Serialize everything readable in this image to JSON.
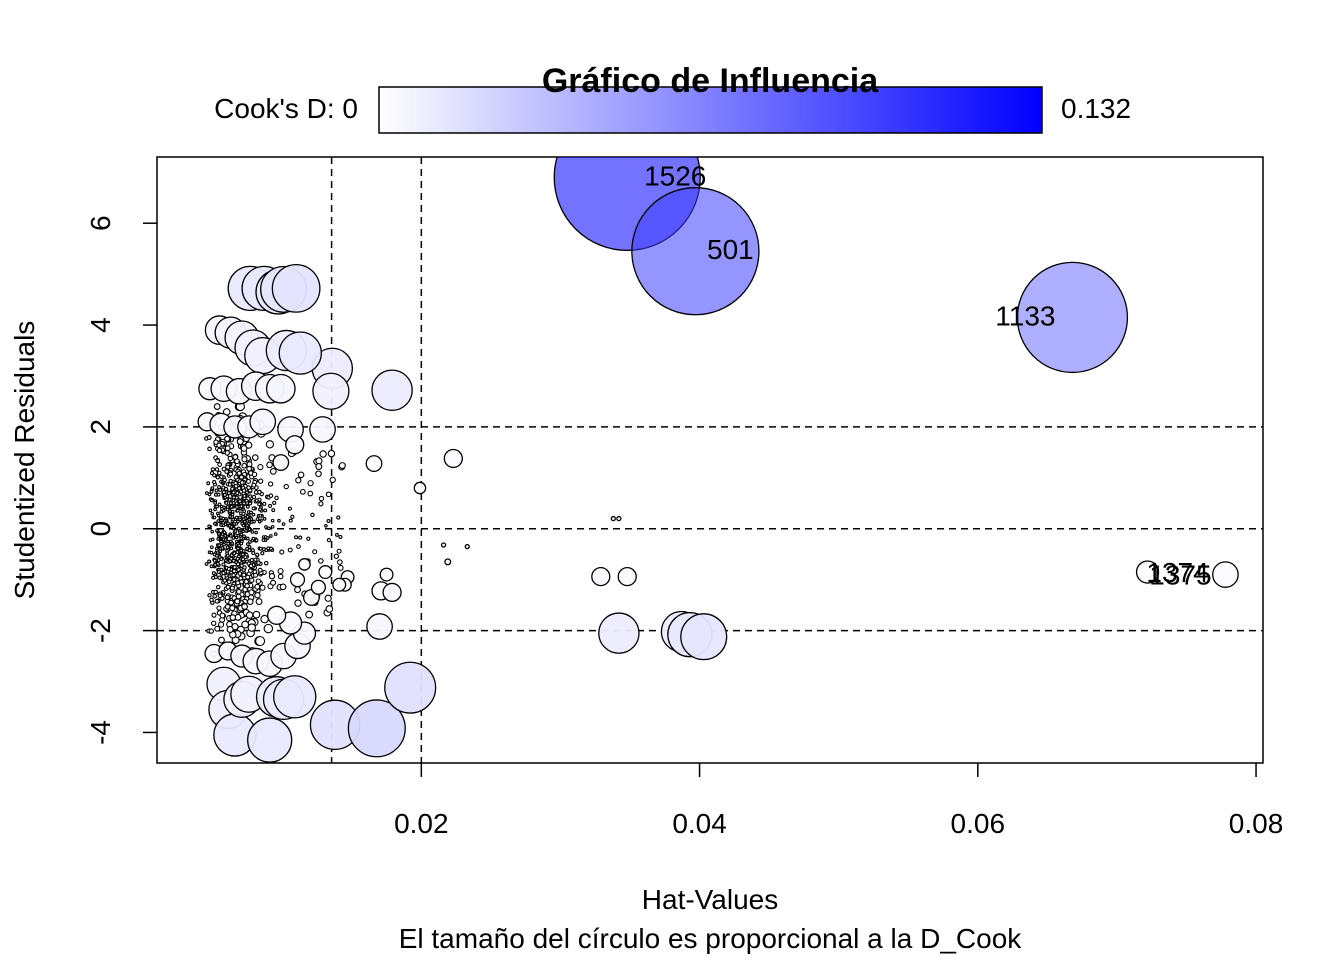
{
  "chart_data": {
    "type": "scatter",
    "title": "Gráfico de Influencia",
    "xlabel": "Hat-Values",
    "subtitle": "El tamaño del círculo es proporcional a la D_Cook",
    "ylabel": "Studentized Residuals",
    "xlim": [
      0.001,
      0.0805
    ],
    "ylim": [
      -4.6,
      7.3
    ],
    "x_ticks": [
      "0.02",
      "0.04",
      "0.06",
      "0.08"
    ],
    "y_ticks": [
      "-4",
      "-2",
      "0",
      "2",
      "4",
      "6"
    ],
    "grid": false,
    "hlines": [
      -2,
      0,
      2
    ],
    "vlines": [
      0.01355,
      0.02
    ],
    "colorbar": {
      "label": "Cook's D: 0",
      "max_label": "0.132",
      "min": 0,
      "max": 0.132,
      "low_color": "#ffffff",
      "high_color": "#0000ff",
      "placement": "top"
    },
    "labeled_points": [
      {
        "label": "1526",
        "x": 0.0348,
        "y": 6.9,
        "cooks_d": 0.132
      },
      {
        "label": "501",
        "x": 0.0397,
        "y": 5.45,
        "cooks_d": 0.1
      },
      {
        "label": "1133",
        "x": 0.0668,
        "y": 4.15,
        "cooks_d": 0.075
      },
      {
        "label": "1375",
        "x": 0.0778,
        "y": -0.9,
        "cooks_d": 0.004
      },
      {
        "label": "1374",
        "x": 0.0722,
        "y": -0.85,
        "cooks_d": 0.003
      }
    ],
    "points": [
      {
        "x": 0.0223,
        "y": 1.38,
        "cooks_d": 0.002
      },
      {
        "x": 0.0199,
        "y": 0.8,
        "cooks_d": 0.0008
      },
      {
        "x": 0.0166,
        "y": 1.28,
        "cooks_d": 0.0015
      },
      {
        "x": 0.0179,
        "y": 2.72,
        "cooks_d": 0.01
      },
      {
        "x": 0.0136,
        "y": 3.15,
        "cooks_d": 0.01
      },
      {
        "x": 0.0135,
        "y": 2.7,
        "cooks_d": 0.008
      },
      {
        "x": 0.0129,
        "y": 1.95,
        "cooks_d": 0.004
      },
      {
        "x": 0.0138,
        "y": -3.85,
        "cooks_d": 0.015
      },
      {
        "x": 0.0168,
        "y": -3.92,
        "cooks_d": 0.02
      },
      {
        "x": 0.0192,
        "y": -3.12,
        "cooks_d": 0.016
      },
      {
        "x": 0.017,
        "y": -1.92,
        "cooks_d": 0.004
      },
      {
        "x": 0.0171,
        "y": -1.22,
        "cooks_d": 0.002
      },
      {
        "x": 0.0179,
        "y": -1.25,
        "cooks_d": 0.002
      },
      {
        "x": 0.0175,
        "y": -0.9,
        "cooks_d": 0.001
      },
      {
        "x": 0.0147,
        "y": -0.95,
        "cooks_d": 0.001
      },
      {
        "x": 0.0145,
        "y": -1.1,
        "cooks_d": 0.001
      },
      {
        "x": 0.0141,
        "y": -1.1,
        "cooks_d": 0.001
      },
      {
        "x": 0.0329,
        "y": -0.94,
        "cooks_d": 0.002
      },
      {
        "x": 0.0348,
        "y": -0.94,
        "cooks_d": 0.002
      },
      {
        "x": 0.0342,
        "y": -2.05,
        "cooks_d": 0.01
      },
      {
        "x": 0.0387,
        "y": -2.02,
        "cooks_d": 0.01
      },
      {
        "x": 0.0393,
        "y": -2.08,
        "cooks_d": 0.012
      },
      {
        "x": 0.0403,
        "y": -2.12,
        "cooks_d": 0.013
      },
      {
        "x": 0.0338,
        "y": 0.2,
        "cooks_d": 0.0001
      },
      {
        "x": 0.0342,
        "y": 0.2,
        "cooks_d": 0.0001
      },
      {
        "x": 0.0216,
        "y": -0.32,
        "cooks_d": 0.0001
      },
      {
        "x": 0.0219,
        "y": -0.65,
        "cooks_d": 0.0002
      },
      {
        "x": 0.0233,
        "y": -0.35,
        "cooks_d": 0.0001
      },
      {
        "x": 0.0077,
        "y": 4.72,
        "cooks_d": 0.012
      },
      {
        "x": 0.0087,
        "y": 4.72,
        "cooks_d": 0.012
      },
      {
        "x": 0.0097,
        "y": 4.65,
        "cooks_d": 0.012
      },
      {
        "x": 0.0101,
        "y": 4.7,
        "cooks_d": 0.013
      },
      {
        "x": 0.011,
        "y": 4.72,
        "cooks_d": 0.014
      },
      {
        "x": 0.0055,
        "y": 3.9,
        "cooks_d": 0.005
      },
      {
        "x": 0.0063,
        "y": 3.85,
        "cooks_d": 0.006
      },
      {
        "x": 0.0071,
        "y": 3.75,
        "cooks_d": 0.007
      },
      {
        "x": 0.0079,
        "y": 3.55,
        "cooks_d": 0.008
      },
      {
        "x": 0.0086,
        "y": 3.4,
        "cooks_d": 0.008
      },
      {
        "x": 0.0103,
        "y": 3.5,
        "cooks_d": 0.01
      },
      {
        "x": 0.0113,
        "y": 3.45,
        "cooks_d": 0.011
      },
      {
        "x": 0.0048,
        "y": 2.75,
        "cooks_d": 0.003
      },
      {
        "x": 0.0058,
        "y": 2.75,
        "cooks_d": 0.004
      },
      {
        "x": 0.0069,
        "y": 2.7,
        "cooks_d": 0.004
      },
      {
        "x": 0.0081,
        "y": 2.8,
        "cooks_d": 0.005
      },
      {
        "x": 0.0091,
        "y": 2.75,
        "cooks_d": 0.005
      },
      {
        "x": 0.0099,
        "y": 2.75,
        "cooks_d": 0.005
      },
      {
        "x": 0.0046,
        "y": 2.1,
        "cooks_d": 0.002
      },
      {
        "x": 0.0056,
        "y": 2.05,
        "cooks_d": 0.003
      },
      {
        "x": 0.0066,
        "y": 2.0,
        "cooks_d": 0.003
      },
      {
        "x": 0.0076,
        "y": 2.0,
        "cooks_d": 0.003
      },
      {
        "x": 0.0086,
        "y": 2.1,
        "cooks_d": 0.004
      },
      {
        "x": 0.0106,
        "y": 1.95,
        "cooks_d": 0.004
      },
      {
        "x": 0.0109,
        "y": 1.65,
        "cooks_d": 0.002
      },
      {
        "x": 0.0099,
        "y": 1.3,
        "cooks_d": 0.0015
      },
      {
        "x": 0.0058,
        "y": -3.05,
        "cooks_d": 0.007
      },
      {
        "x": 0.0061,
        "y": -3.55,
        "cooks_d": 0.009
      },
      {
        "x": 0.0066,
        "y": -4.05,
        "cooks_d": 0.011
      },
      {
        "x": 0.0071,
        "y": -3.35,
        "cooks_d": 0.008
      },
      {
        "x": 0.0076,
        "y": -3.25,
        "cooks_d": 0.008
      },
      {
        "x": 0.0091,
        "y": -4.15,
        "cooks_d": 0.012
      },
      {
        "x": 0.0096,
        "y": -3.3,
        "cooks_d": 0.01
      },
      {
        "x": 0.0101,
        "y": -3.35,
        "cooks_d": 0.01
      },
      {
        "x": 0.0109,
        "y": -3.3,
        "cooks_d": 0.011
      },
      {
        "x": 0.0051,
        "y": -2.45,
        "cooks_d": 0.002
      },
      {
        "x": 0.0061,
        "y": -2.4,
        "cooks_d": 0.002
      },
      {
        "x": 0.0071,
        "y": -2.5,
        "cooks_d": 0.003
      },
      {
        "x": 0.0081,
        "y": -2.6,
        "cooks_d": 0.004
      },
      {
        "x": 0.0091,
        "y": -2.65,
        "cooks_d": 0.004
      },
      {
        "x": 0.0101,
        "y": -2.5,
        "cooks_d": 0.004
      },
      {
        "x": 0.0111,
        "y": -2.3,
        "cooks_d": 0.004
      },
      {
        "x": 0.0116,
        "y": -2.05,
        "cooks_d": 0.003
      },
      {
        "x": 0.0106,
        "y": -1.85,
        "cooks_d": 0.003
      },
      {
        "x": 0.0096,
        "y": -1.7,
        "cooks_d": 0.002
      },
      {
        "x": 0.0121,
        "y": -1.35,
        "cooks_d": 0.0015
      },
      {
        "x": 0.0111,
        "y": -1.0,
        "cooks_d": 0.0012
      },
      {
        "x": 0.0116,
        "y": -0.7,
        "cooks_d": 0.0008
      },
      {
        "x": 0.0126,
        "y": -1.15,
        "cooks_d": 0.0012
      },
      {
        "x": 0.0131,
        "y": -0.85,
        "cooks_d": 0.001
      }
    ]
  }
}
